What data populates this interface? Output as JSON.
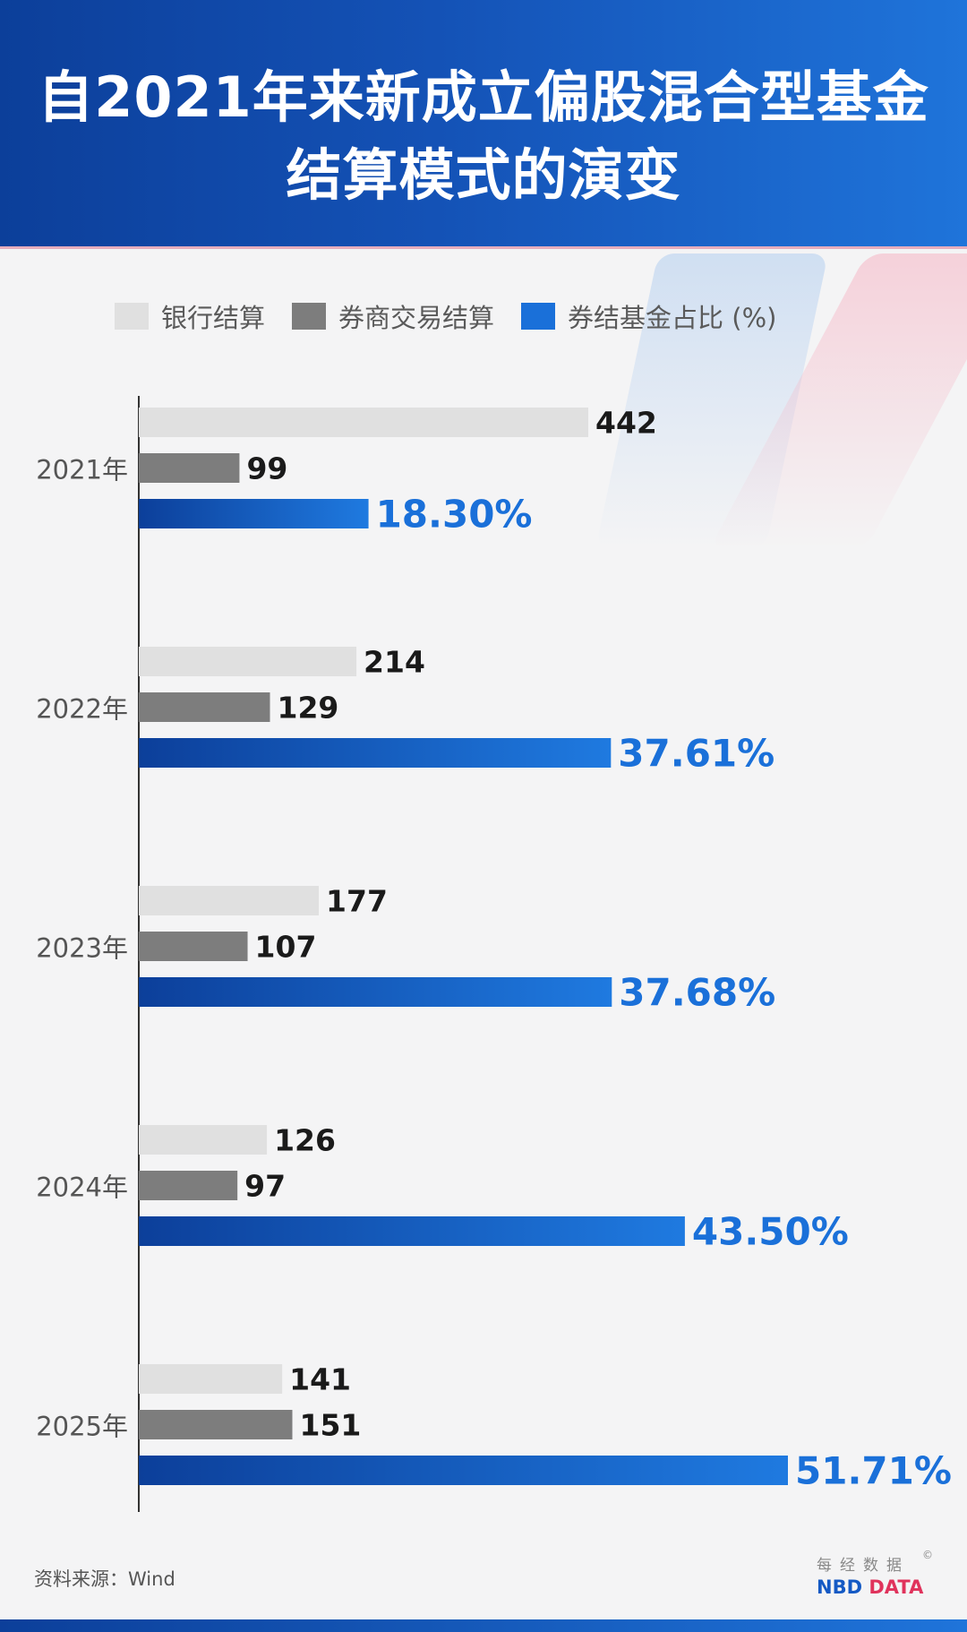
{
  "header": {
    "title_line1": "自2021年来新成立偏股混合型基金",
    "title_line2": "结算模式的演变"
  },
  "legend": [
    {
      "label": "银行结算",
      "color": "#e0e0e0"
    },
    {
      "label": "券商交易结算",
      "color": "#7d7d7d"
    },
    {
      "label": "券结基金占比 (%)",
      "color": "#1a70d9"
    }
  ],
  "colors": {
    "bank": "#e0e0e0",
    "broker": "#7d7d7d",
    "share_start": "#0c3f9a",
    "share_end": "#1f7ae0",
    "share_label": "#1a70d9",
    "value_label": "#1a1a1a",
    "year_label": "#555555",
    "axis": "#333333"
  },
  "chart_data": {
    "type": "bar",
    "orientation": "horizontal",
    "title": "自2021年来新成立偏股混合型基金结算模式的演变",
    "categories": [
      "2021年",
      "2022年",
      "2023年",
      "2024年",
      "2025年"
    ],
    "series": [
      {
        "name": "银行结算",
        "values": [
          442,
          214,
          177,
          126,
          141
        ],
        "labels": [
          "442",
          "214",
          "177",
          "126",
          "141"
        ]
      },
      {
        "name": "券商交易结算",
        "values": [
          99,
          129,
          107,
          97,
          151
        ],
        "labels": [
          "99",
          "129",
          "107",
          "97",
          "151"
        ]
      },
      {
        "name": "券结基金占比 (%)",
        "values": [
          18.3,
          37.61,
          37.68,
          43.5,
          51.71
        ],
        "labels": [
          "18.30%",
          "37.61%",
          "37.68%",
          "43.50%",
          "51.71%"
        ]
      }
    ],
    "legend_position": "top"
  },
  "footer": {
    "source": "资料来源：Wind",
    "brand_cn": "每经数据",
    "brand_copyright": "©",
    "brand_en_nbd": "NBD",
    "brand_en_data": "DATA"
  }
}
